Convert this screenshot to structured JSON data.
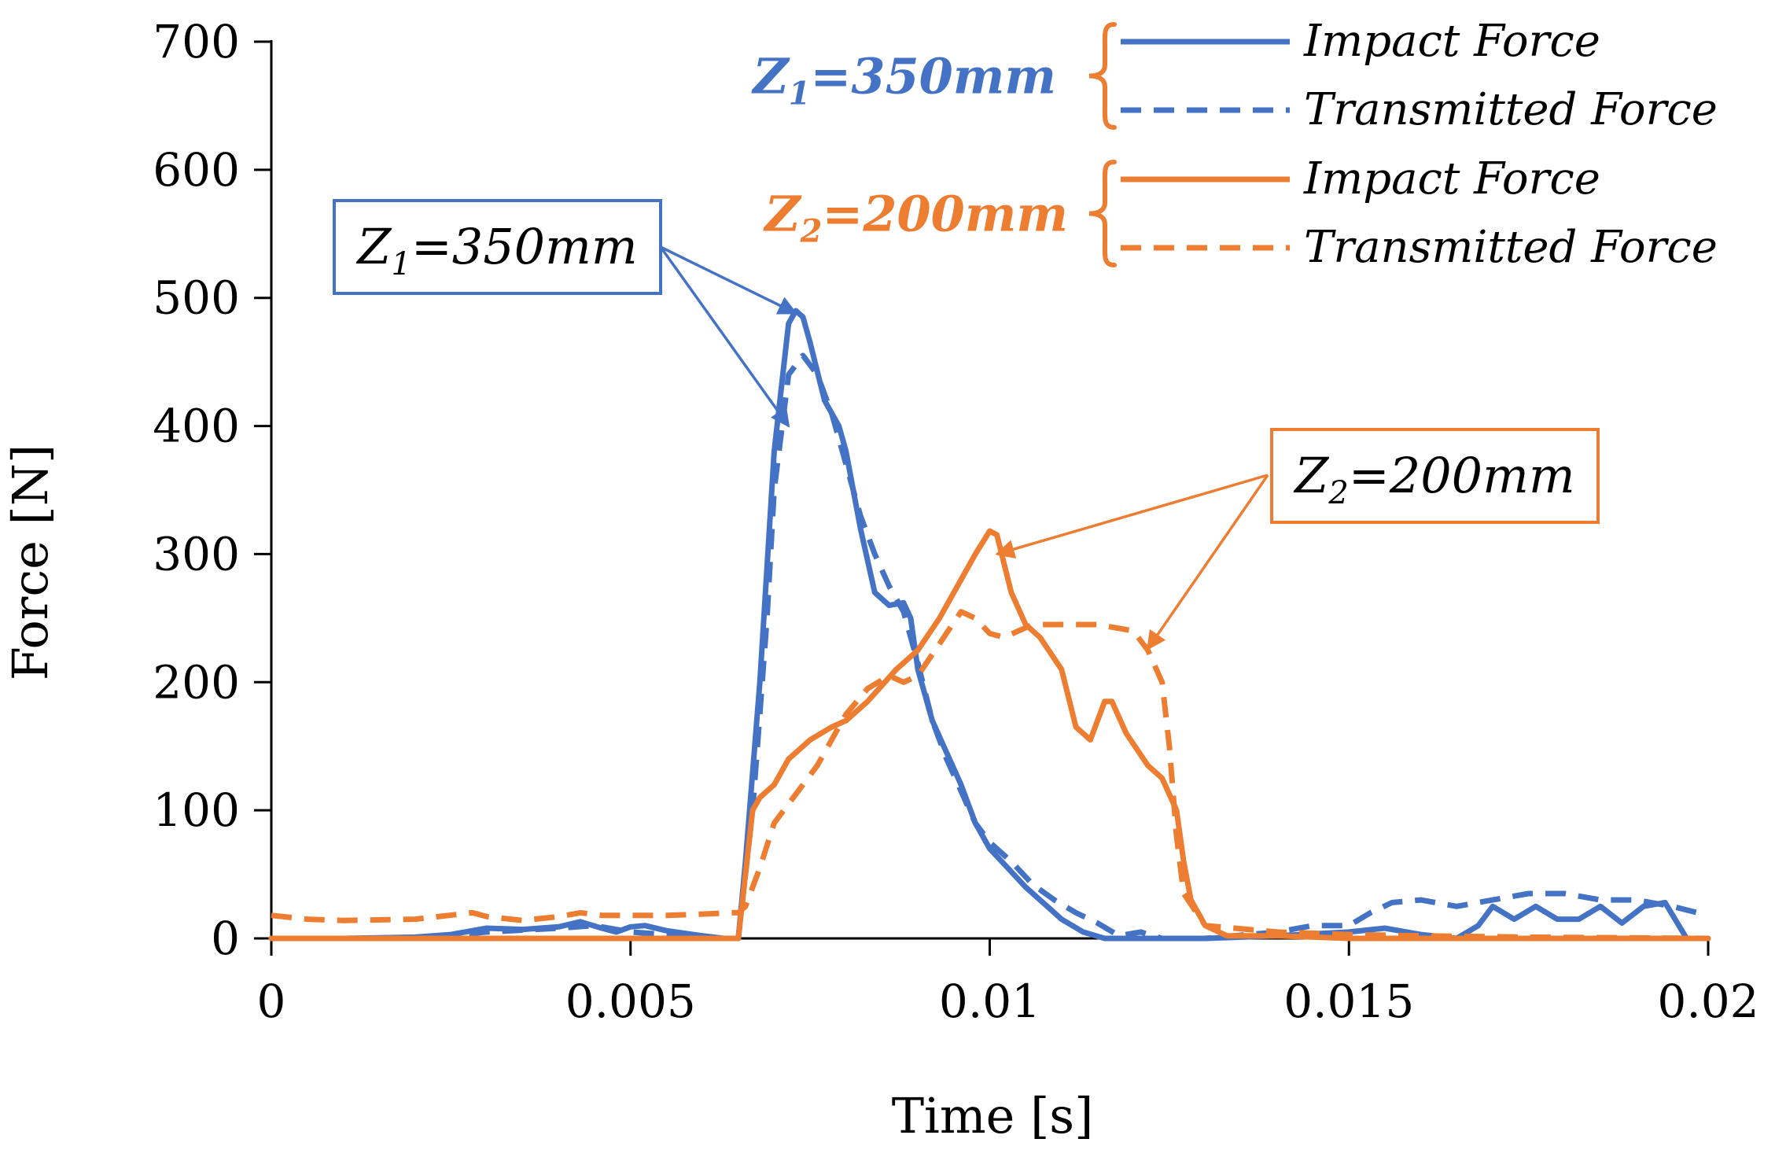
{
  "chart_data": {
    "type": "line",
    "xlabel": "Time [s]",
    "ylabel": "Force [N]",
    "xlim": [
      0,
      0.02
    ],
    "ylim": [
      0,
      700
    ],
    "x_ticks": [
      "0",
      "0.005",
      "0.01",
      "0.015",
      "0.02"
    ],
    "x_tick_values": [
      0,
      0.005,
      0.01,
      0.015,
      0.02
    ],
    "y_ticks": [
      "0",
      "100",
      "200",
      "300",
      "400",
      "500",
      "600",
      "700"
    ],
    "y_tick_values": [
      0,
      100,
      200,
      300,
      400,
      500,
      600,
      700
    ],
    "colors": {
      "blue": "#4472C4",
      "orange": "#ED7D31"
    },
    "legend_groups": [
      {
        "prefix": "Z",
        "sub": "1",
        "suffix": "=350mm",
        "color": "#4472C4",
        "entries": [
          "Impact Force",
          "Transmitted Force"
        ]
      },
      {
        "prefix": "Z",
        "sub": "2",
        "suffix": "=200mm",
        "color": "#ED7D31",
        "entries": [
          "Impact Force",
          "Transmitted Force"
        ]
      }
    ],
    "callouts": [
      {
        "prefix": "Z",
        "sub": "1",
        "suffix": "=350mm",
        "color": "#4472C4",
        "points": [
          [
            0.0073,
            488
          ],
          [
            0.0072,
            400
          ]
        ]
      },
      {
        "prefix": "Z",
        "sub": "2",
        "suffix": "=200mm",
        "color": "#ED7D31",
        "points": [
          [
            0.0101,
            300
          ],
          [
            0.0122,
            226
          ]
        ]
      }
    ],
    "series": [
      {
        "name": "Z1=350mm Impact Force",
        "color": "#4472C4",
        "dash": "solid",
        "points": [
          [
            0,
            0
          ],
          [
            0.001,
            0
          ],
          [
            0.002,
            1
          ],
          [
            0.0025,
            3
          ],
          [
            0.003,
            8
          ],
          [
            0.0035,
            7
          ],
          [
            0.004,
            9
          ],
          [
            0.0043,
            13
          ],
          [
            0.0046,
            8
          ],
          [
            0.0048,
            5
          ],
          [
            0.005,
            9
          ],
          [
            0.0052,
            10
          ],
          [
            0.0055,
            6
          ],
          [
            0.006,
            2
          ],
          [
            0.0063,
            0
          ],
          [
            0.0065,
            0
          ],
          [
            0.0066,
            60
          ],
          [
            0.0068,
            200
          ],
          [
            0.007,
            380
          ],
          [
            0.0072,
            480
          ],
          [
            0.0073,
            490
          ],
          [
            0.0074,
            485
          ],
          [
            0.0075,
            465
          ],
          [
            0.0077,
            420
          ],
          [
            0.0079,
            400
          ],
          [
            0.008,
            380
          ],
          [
            0.0082,
            320
          ],
          [
            0.0084,
            270
          ],
          [
            0.0086,
            260
          ],
          [
            0.0088,
            262
          ],
          [
            0.0089,
            250
          ],
          [
            0.009,
            210
          ],
          [
            0.0092,
            170
          ],
          [
            0.0094,
            145
          ],
          [
            0.0096,
            120
          ],
          [
            0.0098,
            90
          ],
          [
            0.01,
            70
          ],
          [
            0.0102,
            58
          ],
          [
            0.0105,
            40
          ],
          [
            0.0108,
            25
          ],
          [
            0.011,
            15
          ],
          [
            0.0113,
            5
          ],
          [
            0.0116,
            0
          ],
          [
            0.012,
            0
          ],
          [
            0.0125,
            0
          ],
          [
            0.013,
            0
          ],
          [
            0.014,
            2
          ],
          [
            0.015,
            5
          ],
          [
            0.0155,
            8
          ],
          [
            0.016,
            3
          ],
          [
            0.0165,
            0
          ],
          [
            0.0168,
            10
          ],
          [
            0.017,
            25
          ],
          [
            0.0173,
            15
          ],
          [
            0.0176,
            25
          ],
          [
            0.0179,
            15
          ],
          [
            0.0182,
            15
          ],
          [
            0.0185,
            25
          ],
          [
            0.0188,
            12
          ],
          [
            0.0191,
            25
          ],
          [
            0.0194,
            28
          ],
          [
            0.0197,
            0
          ],
          [
            0.02,
            0
          ]
        ]
      },
      {
        "name": "Z1=350mm Transmitted Force",
        "color": "#4472C4",
        "dash": "dashed",
        "points": [
          [
            0,
            0
          ],
          [
            0.001,
            0
          ],
          [
            0.002,
            0
          ],
          [
            0.003,
            5
          ],
          [
            0.004,
            8
          ],
          [
            0.0045,
            10
          ],
          [
            0.005,
            5
          ],
          [
            0.0055,
            3
          ],
          [
            0.006,
            0
          ],
          [
            0.0065,
            0
          ],
          [
            0.0067,
            100
          ],
          [
            0.0069,
            250
          ],
          [
            0.007,
            350
          ],
          [
            0.0072,
            440
          ],
          [
            0.0074,
            455
          ],
          [
            0.0076,
            440
          ],
          [
            0.0078,
            410
          ],
          [
            0.008,
            370
          ],
          [
            0.0082,
            330
          ],
          [
            0.0084,
            300
          ],
          [
            0.0086,
            275
          ],
          [
            0.0088,
            255
          ],
          [
            0.009,
            215
          ],
          [
            0.0092,
            170
          ],
          [
            0.0094,
            140
          ],
          [
            0.0096,
            115
          ],
          [
            0.0098,
            90
          ],
          [
            0.01,
            75
          ],
          [
            0.0103,
            60
          ],
          [
            0.0106,
            42
          ],
          [
            0.0109,
            30
          ],
          [
            0.0112,
            20
          ],
          [
            0.0115,
            12
          ],
          [
            0.0118,
            2
          ],
          [
            0.0121,
            5
          ],
          [
            0.0124,
            0
          ],
          [
            0.0128,
            0
          ],
          [
            0.013,
            0
          ],
          [
            0.014,
            5
          ],
          [
            0.0145,
            10
          ],
          [
            0.015,
            10
          ],
          [
            0.0153,
            20
          ],
          [
            0.0156,
            28
          ],
          [
            0.016,
            30
          ],
          [
            0.0165,
            25
          ],
          [
            0.017,
            30
          ],
          [
            0.0175,
            35
          ],
          [
            0.018,
            35
          ],
          [
            0.0185,
            30
          ],
          [
            0.019,
            30
          ],
          [
            0.0195,
            25
          ],
          [
            0.02,
            18
          ]
        ]
      },
      {
        "name": "Z2=200mm Impact Force",
        "color": "#ED7D31",
        "dash": "solid",
        "points": [
          [
            0,
            0
          ],
          [
            0.002,
            0
          ],
          [
            0.004,
            0
          ],
          [
            0.006,
            0
          ],
          [
            0.0064,
            0
          ],
          [
            0.0065,
            0
          ],
          [
            0.0066,
            50
          ],
          [
            0.0067,
            100
          ],
          [
            0.0068,
            110
          ],
          [
            0.007,
            120
          ],
          [
            0.0072,
            140
          ],
          [
            0.0075,
            155
          ],
          [
            0.0078,
            165
          ],
          [
            0.008,
            170
          ],
          [
            0.0083,
            185
          ],
          [
            0.0087,
            210
          ],
          [
            0.009,
            225
          ],
          [
            0.0093,
            250
          ],
          [
            0.0096,
            280
          ],
          [
            0.0098,
            300
          ],
          [
            0.01,
            318
          ],
          [
            0.0101,
            315
          ],
          [
            0.0103,
            270
          ],
          [
            0.0105,
            245
          ],
          [
            0.0107,
            235
          ],
          [
            0.011,
            210
          ],
          [
            0.0112,
            165
          ],
          [
            0.0114,
            155
          ],
          [
            0.0116,
            185
          ],
          [
            0.0117,
            185
          ],
          [
            0.0119,
            160
          ],
          [
            0.0122,
            135
          ],
          [
            0.0124,
            125
          ],
          [
            0.0126,
            100
          ],
          [
            0.0127,
            60
          ],
          [
            0.0128,
            30
          ],
          [
            0.013,
            10
          ],
          [
            0.0133,
            2
          ],
          [
            0.014,
            2
          ],
          [
            0.015,
            0
          ],
          [
            0.0165,
            0
          ],
          [
            0.018,
            0
          ],
          [
            0.019,
            0
          ],
          [
            0.02,
            0
          ]
        ]
      },
      {
        "name": "Z2=200mm Transmitted Force",
        "color": "#ED7D31",
        "dash": "dashed",
        "points": [
          [
            0,
            18
          ],
          [
            0.0005,
            15
          ],
          [
            0.001,
            14
          ],
          [
            0.002,
            15
          ],
          [
            0.0028,
            20
          ],
          [
            0.003,
            17
          ],
          [
            0.0035,
            14
          ],
          [
            0.004,
            17
          ],
          [
            0.0043,
            20
          ],
          [
            0.0046,
            18
          ],
          [
            0.005,
            18
          ],
          [
            0.0055,
            18
          ],
          [
            0.006,
            19
          ],
          [
            0.0064,
            20
          ],
          [
            0.0065,
            20
          ],
          [
            0.0066,
            25
          ],
          [
            0.0068,
            55
          ],
          [
            0.007,
            90
          ],
          [
            0.0072,
            105
          ],
          [
            0.0074,
            120
          ],
          [
            0.0076,
            135
          ],
          [
            0.0078,
            155
          ],
          [
            0.008,
            175
          ],
          [
            0.0083,
            195
          ],
          [
            0.0086,
            205
          ],
          [
            0.0088,
            200
          ],
          [
            0.009,
            205
          ],
          [
            0.0093,
            230
          ],
          [
            0.0096,
            255
          ],
          [
            0.0098,
            250
          ],
          [
            0.01,
            238
          ],
          [
            0.0102,
            235
          ],
          [
            0.0104,
            240
          ],
          [
            0.0106,
            245
          ],
          [
            0.0108,
            245
          ],
          [
            0.011,
            245
          ],
          [
            0.0115,
            245
          ],
          [
            0.012,
            240
          ],
          [
            0.0122,
            225
          ],
          [
            0.0124,
            200
          ],
          [
            0.0125,
            150
          ],
          [
            0.0126,
            80
          ],
          [
            0.0127,
            35
          ],
          [
            0.013,
            10
          ],
          [
            0.014,
            5
          ],
          [
            0.015,
            3
          ],
          [
            0.016,
            2
          ],
          [
            0.0175,
            1
          ],
          [
            0.02,
            0
          ]
        ]
      }
    ]
  }
}
